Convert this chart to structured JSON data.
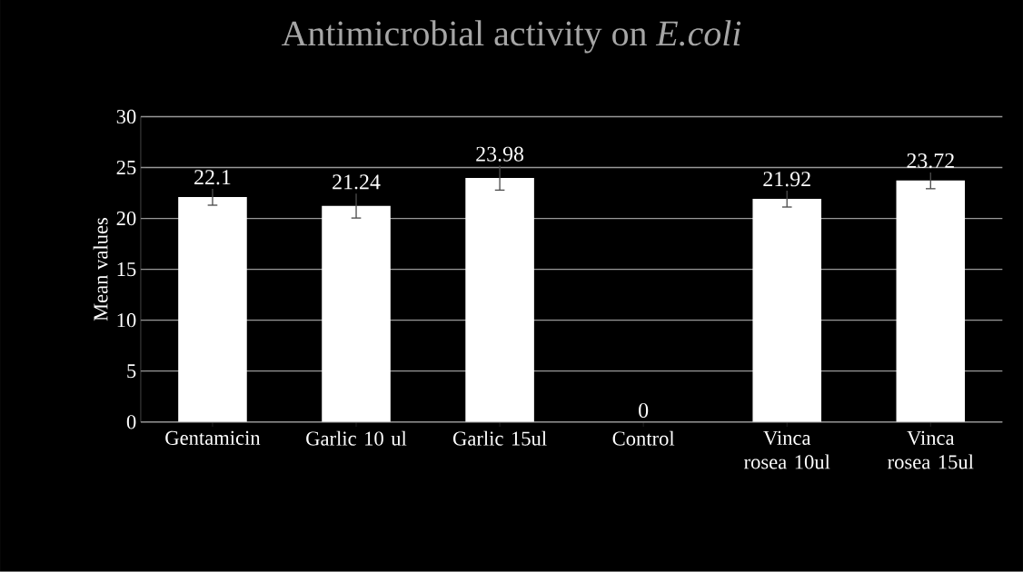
{
  "chart_data": {
    "type": "bar",
    "title": "Antimicrobial activity on *E.coli*",
    "ylabel": "Mean values",
    "categories": [
      "Gentamicin",
      "Garlic 10 ul",
      "Garlic 15ul",
      "Control",
      "Vinca rosea 10ul",
      "Vinca rosea 15ul"
    ],
    "values": [
      22.1,
      21.24,
      23.98,
      0,
      21.92,
      23.72
    ],
    "errors": [
      0.8,
      1.2,
      1.2,
      null,
      0.8,
      0.8
    ],
    "color": "#ffffff",
    "ylim": [
      0,
      30
    ],
    "yticks": [
      0,
      5,
      10,
      15,
      20,
      25,
      30
    ],
    "grid": "y",
    "data_labels": true
  }
}
